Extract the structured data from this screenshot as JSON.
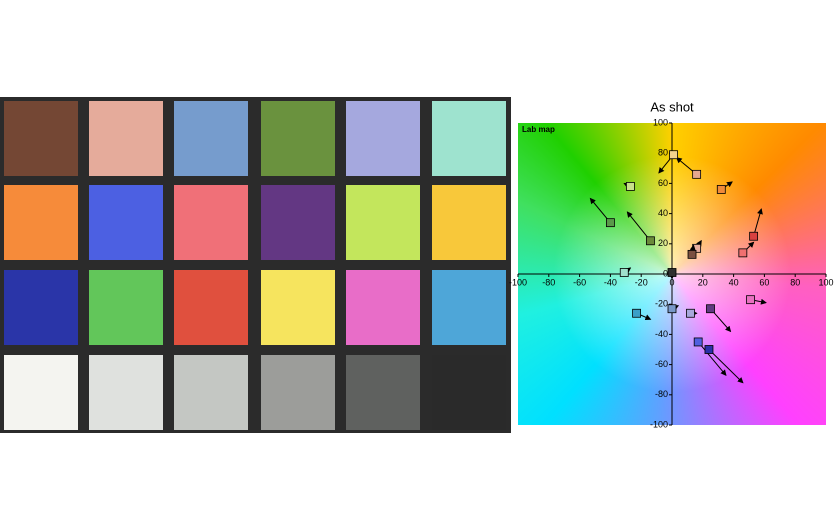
{
  "chart_data": {
    "type": "scatter",
    "title": "As shot",
    "map_label": "Lab map",
    "xlim": [
      -100,
      100
    ],
    "ylim": [
      -100,
      100
    ],
    "xticks": [
      -100,
      -80,
      -60,
      -40,
      -20,
      0,
      20,
      40,
      60,
      80,
      100
    ],
    "yticks": [
      -100,
      -80,
      -60,
      -40,
      -20,
      0,
      20,
      40,
      60,
      80,
      100
    ],
    "points": [
      {
        "x": 16,
        "y": 66,
        "ref_x": 3,
        "ref_y": 77,
        "color": "#e6a88f"
      },
      {
        "x": 1,
        "y": 79,
        "ref_x": -8.5,
        "ref_y": 67,
        "color": "#f3d28c"
      },
      {
        "x": -27,
        "y": 58,
        "ref_x": -31,
        "ref_y": 60,
        "color": "#c8e08a"
      },
      {
        "x": 32,
        "y": 56,
        "ref_x": 39,
        "ref_y": 61,
        "color": "#f08a3a"
      },
      {
        "x": -40,
        "y": 34,
        "ref_x": -53,
        "ref_y": 50,
        "color": "#5a9a4a"
      },
      {
        "x": -14,
        "y": 22,
        "ref_x": -29,
        "ref_y": 41,
        "color": "#6a8a3a"
      },
      {
        "x": 53,
        "y": 25,
        "ref_x": 58,
        "ref_y": 43,
        "color": "#d84040"
      },
      {
        "x": 46,
        "y": 14,
        "ref_x": 53,
        "ref_y": 21,
        "color": "#f07070"
      },
      {
        "x": 16,
        "y": 17,
        "ref_x": 19,
        "ref_y": 22,
        "color": "#e8b0a0"
      },
      {
        "x": 13,
        "y": 13,
        "ref_x": 14,
        "ref_y": 19,
        "color": "#7a5040"
      },
      {
        "x": -31,
        "y": 1,
        "ref_x": -27,
        "ref_y": 4,
        "color": "#a0e0cc"
      },
      {
        "x": 0,
        "y": 1,
        "ref_x": 0,
        "ref_y": -3,
        "color": "#303030"
      },
      {
        "x": -23,
        "y": -26,
        "ref_x": -14,
        "ref_y": -30,
        "color": "#3aa0c8"
      },
      {
        "x": 0,
        "y": -23,
        "ref_x": 4,
        "ref_y": -21,
        "color": "#7898c8"
      },
      {
        "x": 12,
        "y": -26,
        "ref_x": 16,
        "ref_y": -26,
        "color": "#a8a8dc"
      },
      {
        "x": 25,
        "y": -23,
        "ref_x": 38,
        "ref_y": -38,
        "color": "#603a80"
      },
      {
        "x": 51,
        "y": -17,
        "ref_x": 61,
        "ref_y": -19,
        "color": "#e870c0"
      },
      {
        "x": 17,
        "y": -45,
        "ref_x": 35,
        "ref_y": -67,
        "color": "#5060e0"
      },
      {
        "x": 24,
        "y": -50,
        "ref_x": 46,
        "ref_y": -72,
        "color": "#2a30a8"
      }
    ]
  }
}
